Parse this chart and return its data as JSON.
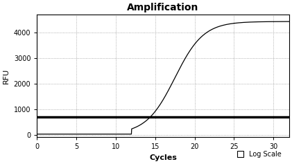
{
  "title": "Amplification",
  "xlabel": "Cycles",
  "ylabel": "RFU",
  "xlim": [
    0,
    32
  ],
  "ylim": [
    -100,
    4700
  ],
  "xticks": [
    0,
    5,
    10,
    15,
    20,
    25,
    30
  ],
  "yticks": [
    0,
    1000,
    2000,
    3000,
    4000
  ],
  "threshold_y": 700,
  "sigmoid_L": 4400,
  "sigmoid_k": 0.55,
  "sigmoid_x0": 17.5,
  "sigmoid_x_start": 0,
  "sigmoid_x_end": 32,
  "baseline": 20,
  "line_color": "#000000",
  "threshold_color": "#000000",
  "threshold_lw": 2.5,
  "background_color": "#ffffff",
  "plot_bg_color": "#ffffff",
  "grid_color": "#999999",
  "grid_linestyle": ":",
  "legend_label": "Log Scale",
  "title_fontsize": 10,
  "title_fontweight": "bold",
  "axis_label_fontsize": 8,
  "axis_label_fontweight": "bold",
  "tick_fontsize": 7,
  "figsize": [
    4.21,
    2.37
  ],
  "dpi": 100
}
